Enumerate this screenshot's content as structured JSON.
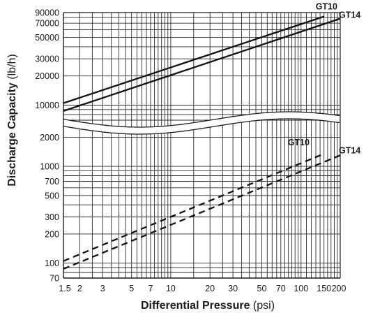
{
  "chart_data": {
    "type": "line",
    "xlabel": "Differential Pressure",
    "xlabel_unit": "(psi)",
    "ylabel": "Discharge Capacity",
    "ylabel_unit": "(lb/h)",
    "x_scale": "log",
    "y_scale": "log (broken axis)",
    "xlim": [
      1.5,
      200
    ],
    "ylim_upper_panel": [
      7000,
      90000
    ],
    "ylim_lower_panel": [
      70,
      2500
    ],
    "grid": true,
    "x_ticks": [
      1.5,
      2,
      3,
      5,
      7,
      10,
      20,
      30,
      50,
      70,
      100,
      150,
      200
    ],
    "x_tick_labels": [
      "1.5",
      "2",
      "3",
      "5",
      "7",
      "10",
      "20",
      "30",
      "50",
      "70",
      "100",
      "150",
      "200"
    ],
    "y_ticks_upper": [
      10000,
      20000,
      30000,
      50000,
      70000,
      90000
    ],
    "y_tick_labels_upper": [
      "10000",
      "20000",
      "30000",
      "50000",
      "70000",
      "90000"
    ],
    "y_ticks_lower": [
      70,
      100,
      200,
      300,
      500,
      700,
      1000,
      2000
    ],
    "y_tick_labels_lower": [
      "70",
      "100",
      "200",
      "300",
      "500",
      "700",
      "1000",
      "2000"
    ],
    "series": [
      {
        "name": "GT10",
        "panel": "upper",
        "style": "solid",
        "x": [
          1.5,
          150
        ],
        "y": [
          10500,
          82000
        ]
      },
      {
        "name": "GT14",
        "panel": "upper",
        "style": "solid",
        "x": [
          1.5,
          200
        ],
        "y": [
          8700,
          78000
        ]
      },
      {
        "name": "GT10",
        "panel": "lower",
        "style": "dashed",
        "x": [
          1.5,
          150
        ],
        "y": [
          105,
          1350
        ]
      },
      {
        "name": "GT14",
        "panel": "lower",
        "style": "dashed",
        "x": [
          1.5,
          200
        ],
        "y": [
          87,
          1300
        ]
      }
    ]
  }
}
